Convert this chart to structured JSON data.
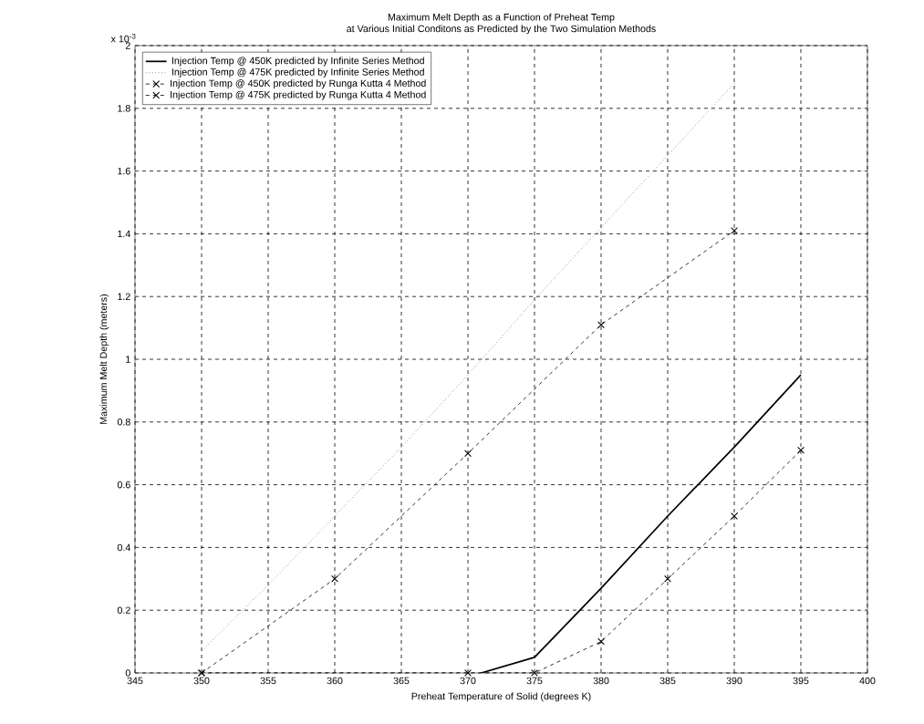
{
  "chart_data": {
    "type": "line",
    "title": "Maximum Melt Depth as a Function of Preheat Temp",
    "subtitle": "at Various Initial Conditons as Predicted by the Two Simulation Methods",
    "xlabel": "Preheat Temperature of Solid (degrees K)",
    "ylabel": "Maximum Melt Depth (meters)",
    "annotations": [
      "x 10$^{-3}$"
    ],
    "series": [
      {
        "name": "Injection Temp @ 450K predicted by Infinite Series Method",
        "color": "#000000",
        "line_style": "solid",
        "marker": "none",
        "x": [
          371,
          375,
          380,
          385,
          390,
          395
        ],
        "values": [
          0,
          0.05,
          0.27,
          0.5,
          0.72,
          0.95
        ]
      },
      {
        "name": "Injection Temp @ 475K predicted by Infinite Series Method",
        "color": "#555555",
        "line_style": "dotted",
        "marker": "none",
        "x": [
          350,
          355,
          360,
          365,
          370,
          375,
          380,
          385,
          390
        ],
        "values": [
          0.07,
          0.28,
          0.5,
          0.72,
          0.95,
          1.19,
          1.42,
          1.65,
          1.88
        ]
      },
      {
        "name": "Injection Temp @ 450K predicted by Runga Kutta 4 Method",
        "color": "#000000",
        "line_style": "dashed",
        "marker": "cross",
        "x": [
          350,
          370,
          375,
          380,
          385,
          390,
          395
        ],
        "values": [
          0,
          0,
          0,
          0.1,
          0.3,
          0.5,
          0.71
        ]
      },
      {
        "name": "Injection Temp @ 475K predicted by Runga Kutta 4 Method",
        "color": "#000000",
        "line_style": "dashed",
        "marker": "cross",
        "x": [
          350,
          360,
          370,
          380,
          390
        ],
        "values": [
          0,
          0.3,
          0.7,
          1.11,
          1.41
        ]
      }
    ],
    "xlim": [
      345,
      400
    ],
    "xticks": [
      345,
      350,
      355,
      360,
      365,
      370,
      375,
      380,
      385,
      390,
      395,
      400
    ],
    "ylim": [
      0,
      2
    ],
    "yticks": [
      0,
      0.2,
      0.4,
      0.6,
      0.8,
      1,
      1.2,
      1.4,
      1.6,
      1.8,
      2
    ],
    "grid": true,
    "legend": "top left"
  }
}
